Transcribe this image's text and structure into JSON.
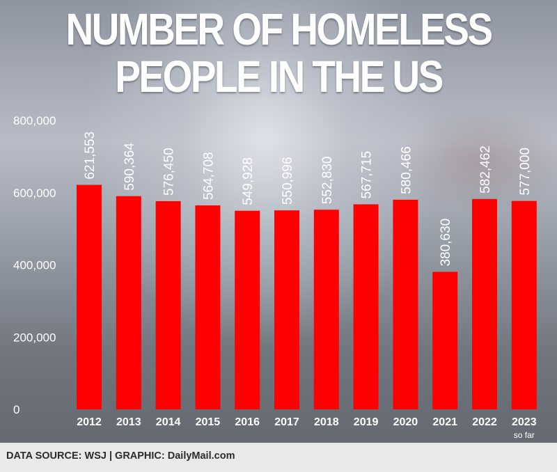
{
  "chart_data": {
    "type": "bar",
    "title_lines": [
      "NUMBER OF HOMELESS",
      "PEOPLE IN THE US"
    ],
    "categories": [
      "2012",
      "2013",
      "2014",
      "2015",
      "2016",
      "2017",
      "2018",
      "2019",
      "2020",
      "2021",
      "2022",
      "2023"
    ],
    "category_notes": [
      "",
      "",
      "",
      "",
      "",
      "",
      "",
      "",
      "",
      "",
      "",
      "so far"
    ],
    "values": [
      621553,
      590364,
      576450,
      564708,
      549928,
      550996,
      552830,
      567715,
      580466,
      380630,
      582462,
      577000
    ],
    "value_labels": [
      "621,553",
      "590,364",
      "576,450",
      "564,708",
      "549,928",
      "550,996",
      "552,830",
      "567,715",
      "580,466",
      "380,630",
      "582,462",
      "577,000"
    ],
    "yticks": [
      0,
      200000,
      400000,
      600000,
      800000
    ],
    "ytick_labels": [
      "0",
      "200,000",
      "400,000",
      "600,000",
      "800,000"
    ],
    "ylim": [
      0,
      800000
    ],
    "bar_color": "#ff0000",
    "grid": false,
    "legend": "none"
  },
  "footer": {
    "source": "DATA SOURCE: WSJ  |  GRAPHIC: DailyMail.com"
  }
}
